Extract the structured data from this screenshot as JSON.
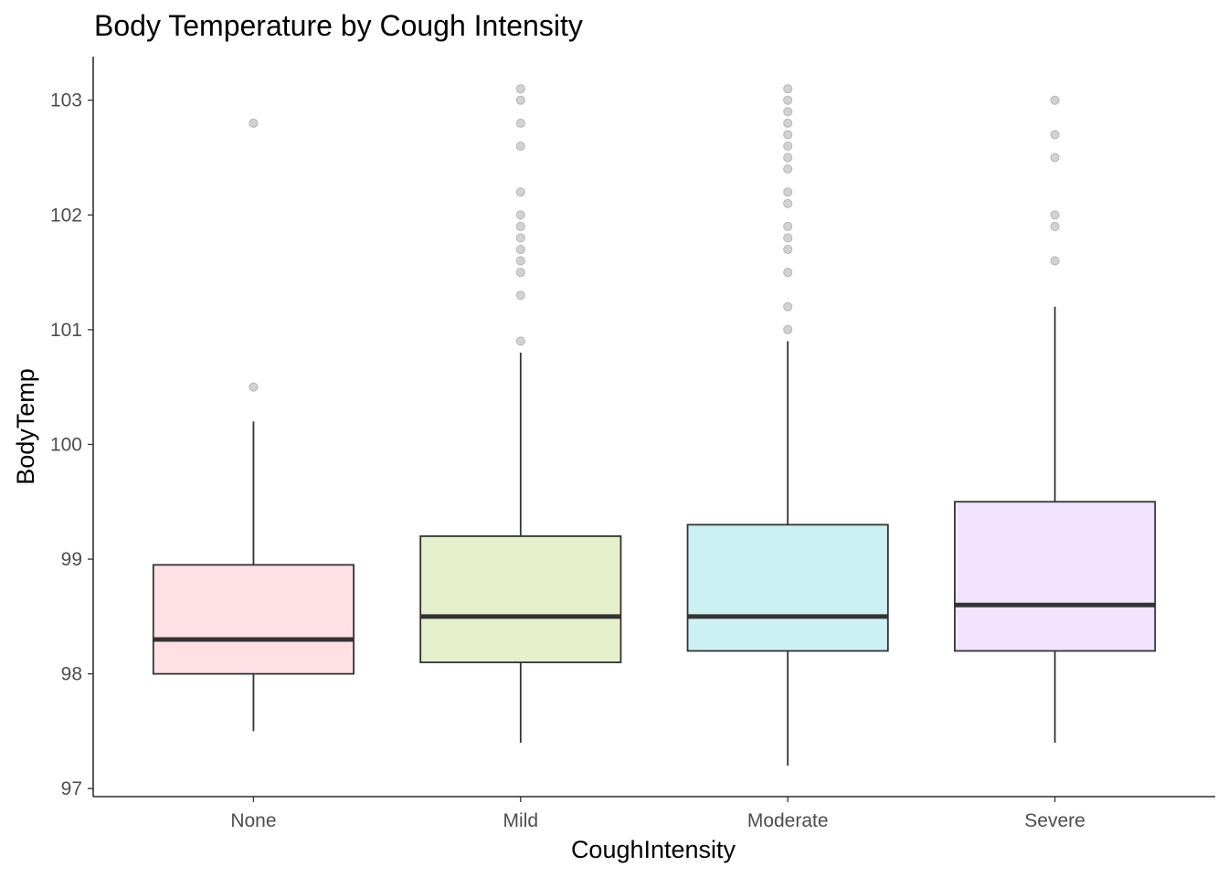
{
  "chart_data": {
    "type": "box",
    "title": "Body Temperature by Cough Intensity",
    "xlabel": "CoughIntensity",
    "ylabel": "BodyTemp",
    "ylim": [
      96.93,
      103.38
    ],
    "yticks": [
      97,
      98,
      99,
      100,
      101,
      102,
      103
    ],
    "grid": false,
    "legend": "none",
    "categories": [
      "None",
      "Mild",
      "Moderate",
      "Severe"
    ],
    "boxes": [
      {
        "category": "None",
        "fill": "#FFE1E5",
        "lower_whisker": 97.5,
        "q1": 98.0,
        "median": 98.3,
        "q3": 98.95,
        "upper_whisker": 100.2,
        "outliers": [
          100.5,
          102.8
        ]
      },
      {
        "category": "Mild",
        "fill": "#E5EFCC",
        "lower_whisker": 97.4,
        "q1": 98.1,
        "median": 98.5,
        "q3": 99.2,
        "upper_whisker": 100.8,
        "outliers": [
          100.9,
          101.3,
          101.5,
          101.6,
          101.7,
          101.8,
          101.9,
          102.0,
          102.2,
          102.6,
          102.8,
          103.0,
          103.1
        ]
      },
      {
        "category": "Moderate",
        "fill": "#CDF1F2",
        "lower_whisker": 97.2,
        "q1": 98.2,
        "median": 98.5,
        "q3": 99.3,
        "upper_whisker": 100.9,
        "outliers": [
          101.0,
          101.2,
          101.5,
          101.7,
          101.8,
          101.9,
          102.1,
          102.2,
          102.4,
          102.5,
          102.6,
          102.7,
          102.8,
          102.9,
          103.0,
          103.1
        ]
      },
      {
        "category": "Severe",
        "fill": "#F2E3FE",
        "lower_whisker": 97.4,
        "q1": 98.2,
        "median": 98.6,
        "q3": 99.5,
        "upper_whisker": 101.2,
        "outliers": [
          101.6,
          101.9,
          102.0,
          102.5,
          102.7,
          103.0
        ]
      }
    ],
    "colors": {
      "outline": "#333333",
      "median": "#333333",
      "outlier": "#7f7f7f",
      "axis": "#000000",
      "tick_text": "#4d4d4d"
    }
  }
}
